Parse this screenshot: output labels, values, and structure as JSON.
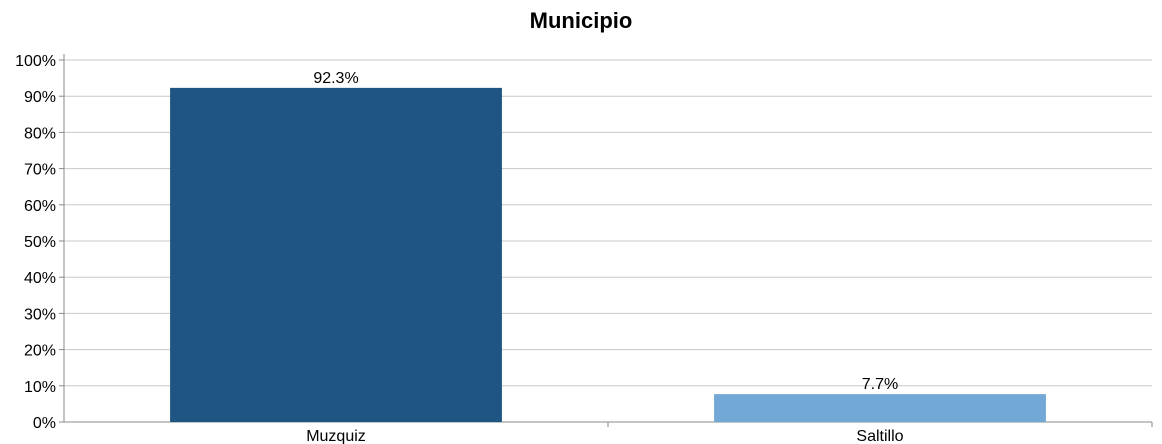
{
  "chart_data": {
    "type": "bar",
    "title": "Municipio",
    "categories": [
      "Muzquiz",
      "Saltillo"
    ],
    "values": [
      92.3,
      7.7
    ],
    "value_labels": [
      "92.3%",
      "7.7%"
    ],
    "colors": [
      "#1f5582",
      "#72a8d5"
    ],
    "xlabel": "",
    "ylabel": "",
    "ylim": [
      0,
      100
    ],
    "y_ticks": [
      0,
      10,
      20,
      30,
      40,
      50,
      60,
      70,
      80,
      90,
      100
    ],
    "y_tick_labels": [
      "0%",
      "10%",
      "20%",
      "30%",
      "40%",
      "50%",
      "60%",
      "70%",
      "80%",
      "90%",
      "100%"
    ],
    "grid": true,
    "legend": "none"
  }
}
